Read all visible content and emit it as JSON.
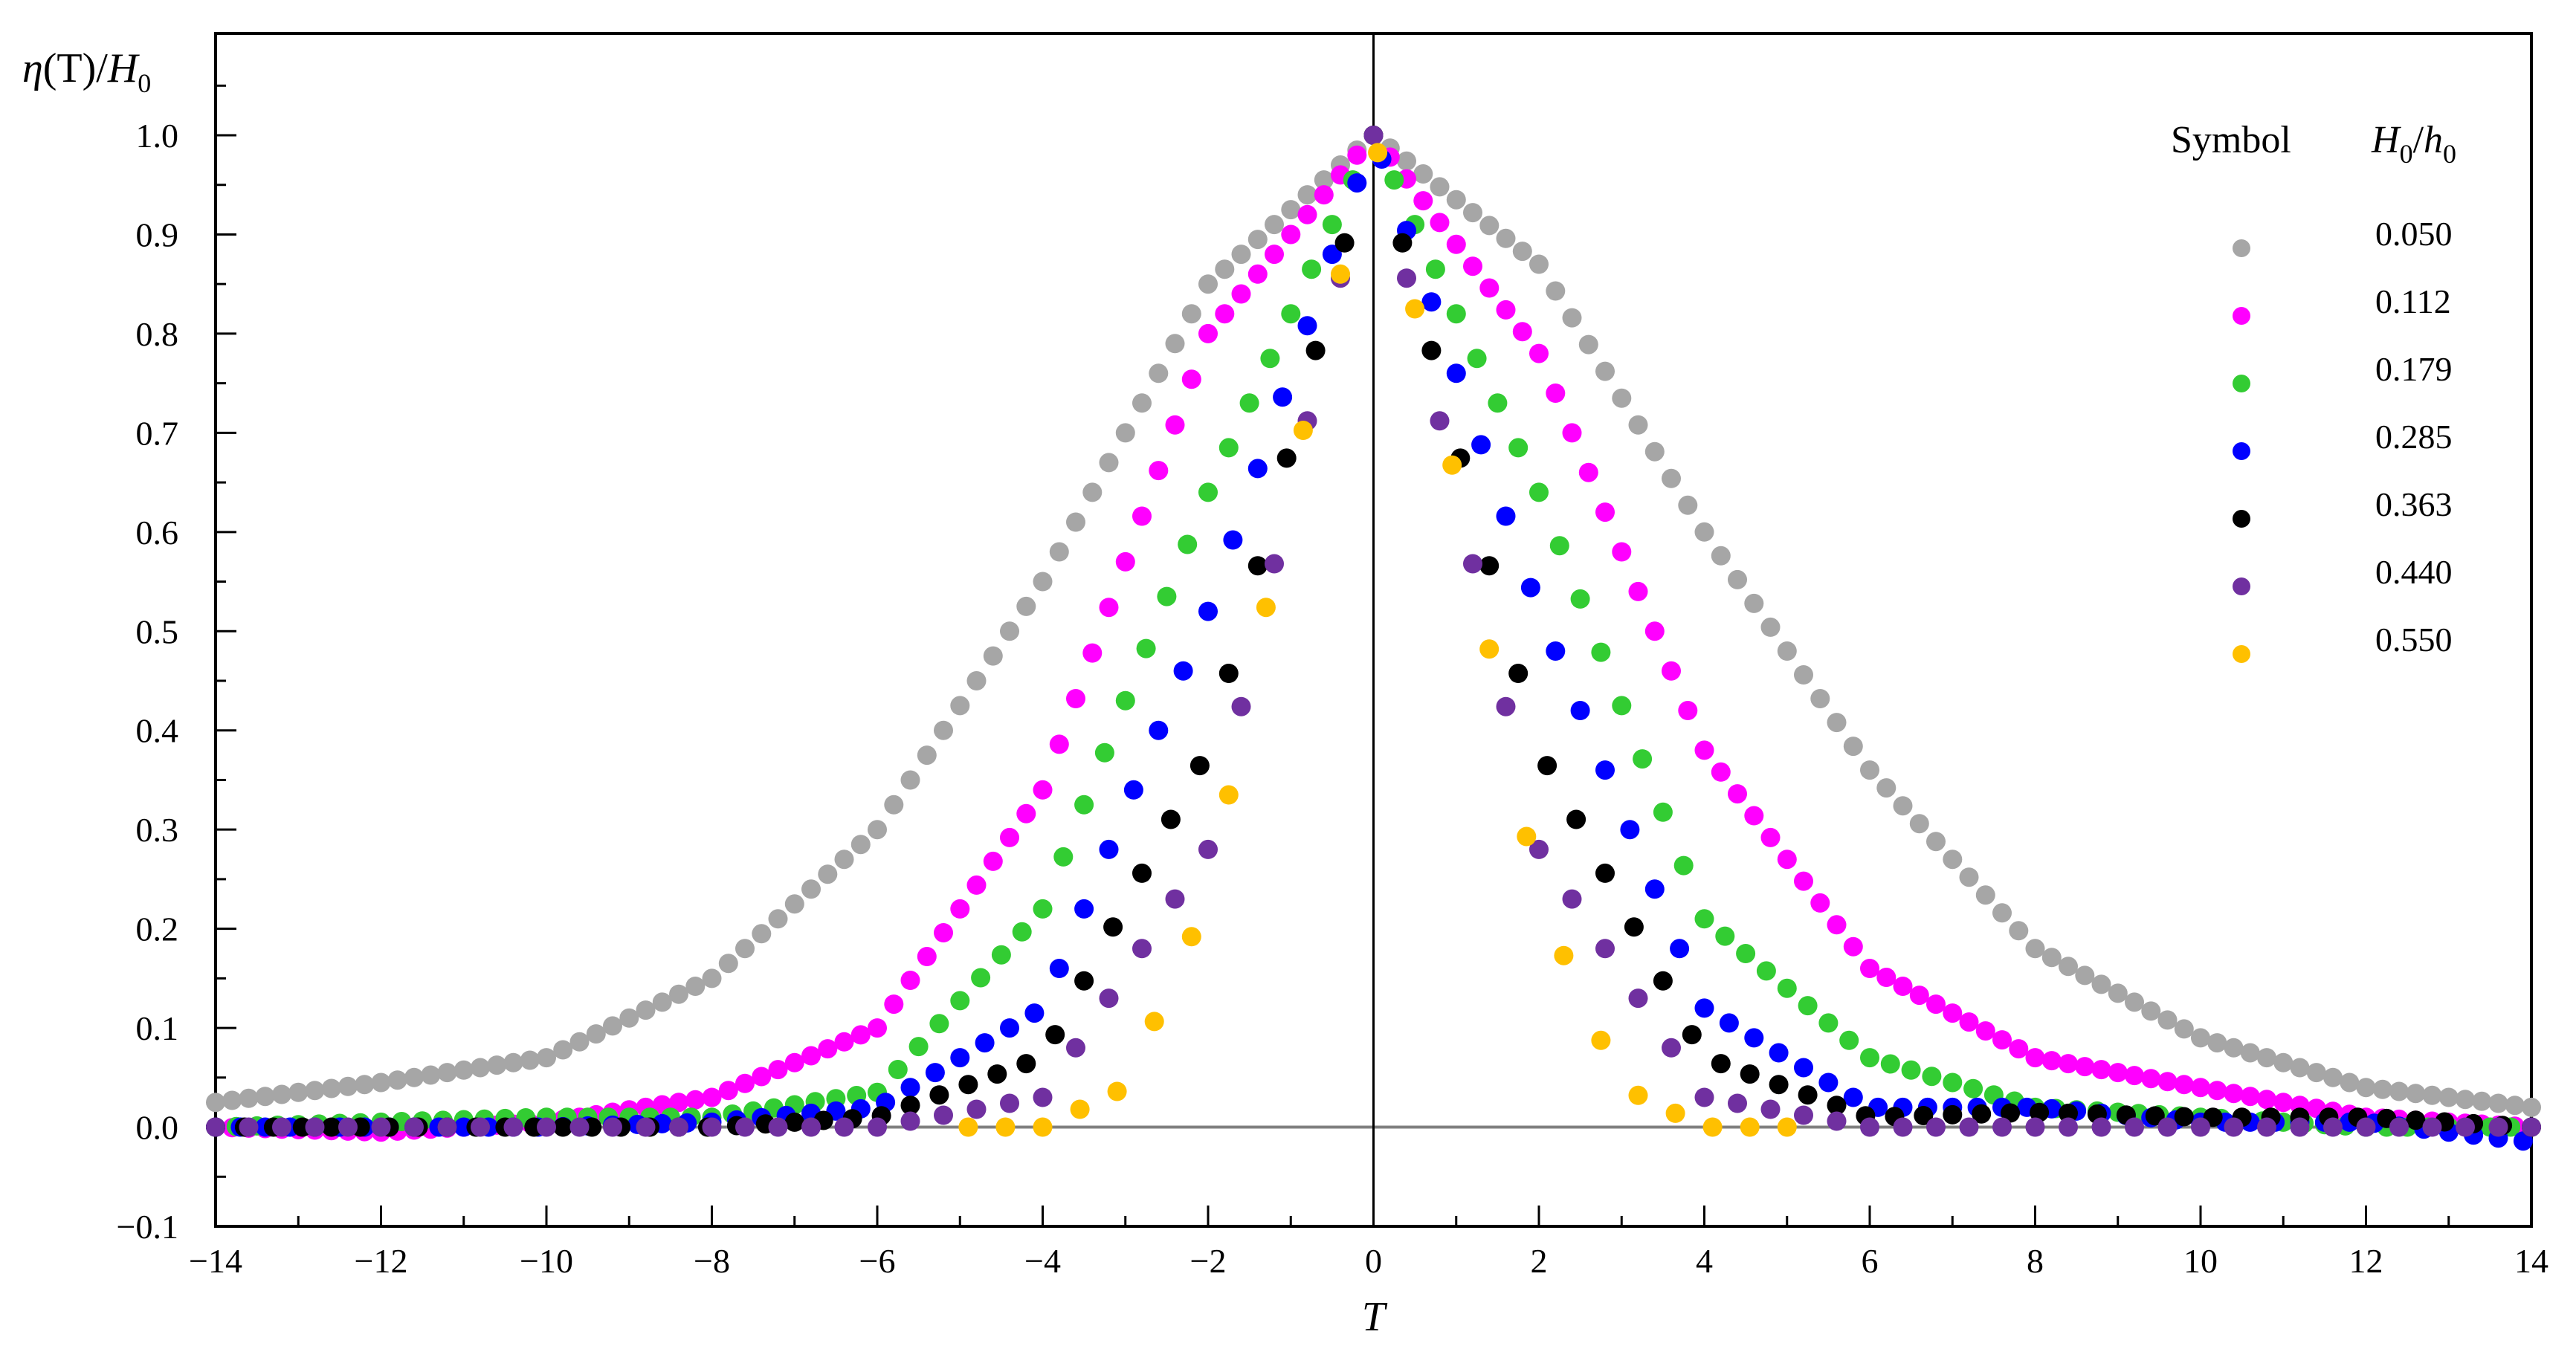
{
  "chart_data": {
    "type": "scatter",
    "title": "",
    "ylabel": "η(T)/H0",
    "ylabel_parts": {
      "eta": "η",
      "arg": "(T)/",
      "H": "H",
      "sub": "0"
    },
    "xlabel": "T",
    "xlim": [
      -14,
      14
    ],
    "ylim": [
      -0.1,
      1.05
    ],
    "x_ticks": [
      "−14",
      "−12",
      "−10",
      "−8",
      "−6",
      "−4",
      "−2",
      "0",
      "2",
      "4",
      "6",
      "8",
      "10",
      "12",
      "14"
    ],
    "x_tick_values": [
      -14,
      -12,
      -10,
      -8,
      -6,
      -4,
      -2,
      0,
      2,
      4,
      6,
      8,
      10,
      12,
      14
    ],
    "y_ticks": [
      "−0.1",
      "0.0",
      "0.1",
      "0.2",
      "0.3",
      "0.4",
      "0.5",
      "0.6",
      "0.7",
      "0.8",
      "0.9",
      "1.0"
    ],
    "y_tick_values": [
      -0.1,
      0.0,
      0.1,
      0.2,
      0.3,
      0.4,
      0.5,
      0.6,
      0.7,
      0.8,
      0.9,
      1.0
    ],
    "grid": false,
    "legend": {
      "placement": "top-right",
      "header_symbol": "Symbol",
      "header_ratio": {
        "H": "H",
        "sub1": "0",
        "slash": "/",
        "h": "h",
        "sub2": "0"
      }
    },
    "series": [
      {
        "name": "0.050",
        "color": "#a6a6a6",
        "x_min": -14,
        "x_max": 14,
        "x_step": 0.2,
        "sample_x": [
          -14,
          -12,
          -10,
          -8,
          -6,
          -4,
          -2,
          0,
          2,
          4,
          6,
          8,
          10,
          12,
          14
        ],
        "sample_y": [
          0.025,
          0.045,
          0.07,
          0.15,
          0.3,
          0.55,
          0.85,
          1.0,
          0.87,
          0.6,
          0.36,
          0.18,
          0.09,
          0.04,
          0.02
        ]
      },
      {
        "name": "0.112",
        "color": "#ff00ff",
        "x_min": -14,
        "x_max": 14,
        "x_step": 0.2,
        "sample_x": [
          -14,
          -12,
          -10,
          -8,
          -6,
          -4,
          -2,
          0,
          2,
          4,
          6,
          8,
          10,
          12,
          14
        ],
        "sample_y": [
          0.0,
          -0.005,
          0.005,
          0.03,
          0.1,
          0.34,
          0.8,
          1.0,
          0.78,
          0.38,
          0.16,
          0.07,
          0.04,
          0.01,
          0.0
        ]
      },
      {
        "name": "0.179",
        "color": "#33cc33",
        "x_min": -14,
        "x_max": 14,
        "x_step": 0.25,
        "sample_x": [
          -14,
          -12,
          -10,
          -8,
          -6,
          -4,
          -2,
          0,
          2,
          4,
          6,
          8,
          10,
          12,
          14
        ],
        "sample_y": [
          0.0,
          0.005,
          0.01,
          0.01,
          0.035,
          0.22,
          0.64,
          1.0,
          0.64,
          0.21,
          0.07,
          0.02,
          0.01,
          0.0,
          0.0
        ]
      },
      {
        "name": "0.285",
        "color": "#0000ff",
        "x_min": -14,
        "x_max": 14,
        "x_step": 0.3,
        "sample_x": [
          -14,
          -12,
          -10,
          -8,
          -6,
          -4,
          -2,
          0,
          2,
          4,
          6,
          8,
          10,
          12,
          14
        ],
        "sample_y": [
          0.0,
          0.0,
          0.0,
          0.005,
          0.02,
          0.12,
          0.52,
          1.0,
          0.52,
          0.12,
          0.02,
          0.02,
          0.005,
          0.005,
          -0.015
        ]
      },
      {
        "name": "0.363",
        "color": "#000000",
        "x_min": -14,
        "x_max": 14,
        "x_step": 0.35,
        "sample_x": [
          -14,
          -12,
          -10,
          -8,
          -6,
          -4,
          -2,
          0,
          2,
          4,
          6,
          8,
          10,
          12,
          14
        ],
        "sample_y": [
          0.0,
          0.0,
          0.0,
          0.0,
          0.01,
          0.07,
          0.38,
          1.0,
          0.38,
          0.07,
          0.01,
          0.015,
          0.01,
          0.01,
          0.0
        ]
      },
      {
        "name": "0.440",
        "color": "#7030a0",
        "x_min": -14,
        "x_max": 14,
        "x_step": 0.4,
        "sample_x": [
          -14,
          -12,
          -10,
          -8,
          -6,
          -4,
          -2,
          0,
          2,
          4,
          6,
          8,
          10,
          12,
          14
        ],
        "sample_y": [
          0.0,
          0.0,
          0.0,
          0.0,
          0.0,
          0.03,
          0.28,
          1.0,
          0.28,
          0.03,
          0.0,
          0.0,
          0.0,
          0.0,
          0.0
        ]
      },
      {
        "name": "0.550",
        "color": "#ffc000",
        "x_min": -4.9,
        "x_max": 4.9,
        "x_step": 0.45,
        "sample_x": [
          -4.9,
          -4,
          -3,
          -2,
          -1,
          0,
          1,
          2,
          3,
          4,
          4.9
        ],
        "sample_y": [
          0.0,
          0.0,
          0.04,
          0.23,
          0.65,
          1.0,
          0.65,
          0.23,
          0.04,
          0.0,
          0.0
        ]
      }
    ]
  }
}
